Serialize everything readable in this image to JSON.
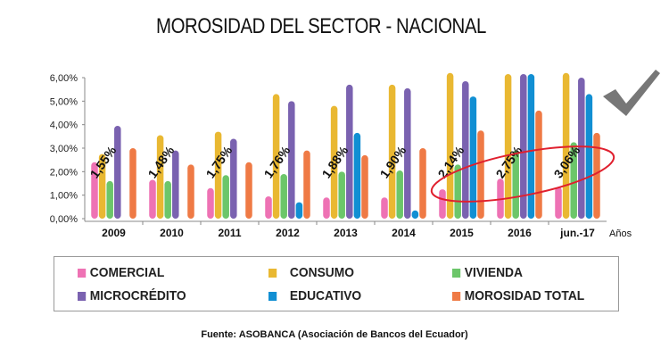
{
  "chart_data": {
    "type": "bar",
    "title": "MOROSIDAD DEL SECTOR - NACIONAL",
    "xlabel": "Años",
    "ylabel": "",
    "ylim": [
      0,
      6
    ],
    "yticks": [
      "0,00%",
      "1,00%",
      "2,00%",
      "3,00%",
      "4,00%",
      "5,00%",
      "6,00%"
    ],
    "categories": [
      "2009",
      "2010",
      "2011",
      "2012",
      "2013",
      "2014",
      "2015",
      "2016",
      "jun.-17"
    ],
    "series": [
      {
        "name": "COMERCIAL",
        "color": "#ee72b4",
        "values": [
          2.4,
          1.65,
          1.3,
          0.95,
          0.9,
          0.9,
          1.25,
          1.7,
          1.35
        ]
      },
      {
        "name": "CONSUMO",
        "color": "#e9b832",
        "values": [
          2.75,
          3.55,
          3.7,
          5.3,
          4.8,
          5.7,
          6.2,
          6.15,
          6.2
        ]
      },
      {
        "name": "VIVIENDA",
        "color": "#6cc66a",
        "values": [
          1.6,
          1.6,
          1.85,
          1.9,
          2.0,
          2.05,
          2.3,
          2.9,
          3.25
        ]
      },
      {
        "name": "MICROCRÉDITO",
        "color": "#7a62b0",
        "values": [
          3.95,
          2.9,
          3.4,
          5.0,
          5.7,
          5.55,
          5.85,
          6.15,
          6.0
        ]
      },
      {
        "name": "EDUCATIVO",
        "color": "#118fd3",
        "values": [
          0,
          0,
          0,
          0.7,
          3.65,
          0.35,
          5.2,
          6.15,
          5.3
        ]
      },
      {
        "name": "MOROSIDAD TOTAL",
        "color": "#ef7a45",
        "values": [
          3.0,
          2.3,
          2.4,
          2.9,
          2.7,
          3.0,
          3.75,
          4.6,
          3.65
        ]
      }
    ],
    "annotations": [
      "1,55%",
      "1,48%",
      "1,75%",
      "1,76%",
      "1,88%",
      "1,90%",
      "2,14%",
      "2,75%",
      "3,06%"
    ],
    "grid": false,
    "legend_placement": "bottom",
    "highlight": {
      "shape": "ellipse",
      "color": "#e0202e",
      "categories": [
        "2015",
        "2016",
        "jun.-17"
      ]
    },
    "decoration_icon": "checkmark-icon"
  },
  "source": "Fuente: ASOBANCA (Asociación de Bancos del Ecuador)"
}
